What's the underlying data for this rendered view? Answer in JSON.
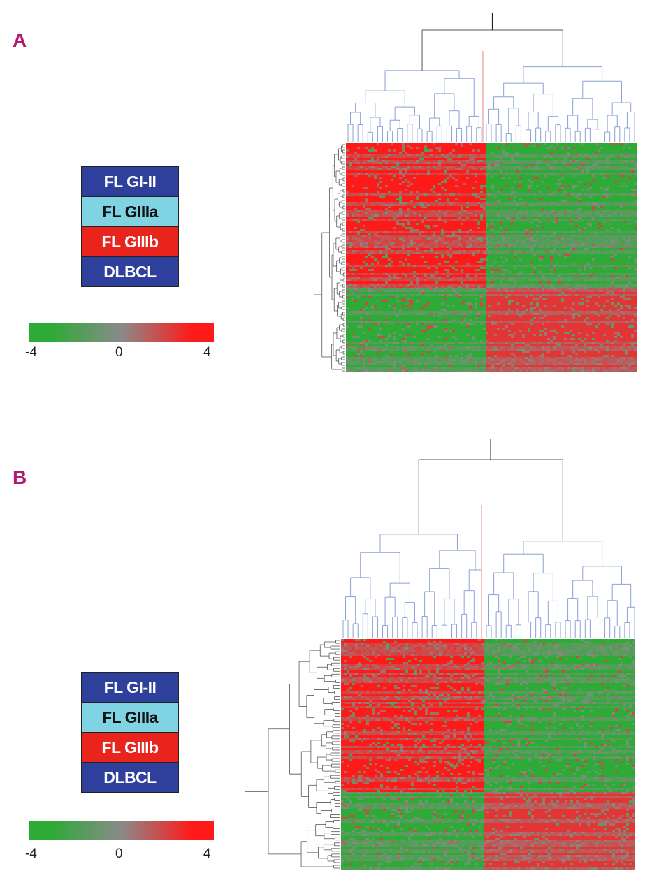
{
  "panels": [
    {
      "label": "A",
      "legend": [
        {
          "text": "FL GI-II",
          "bg": "#2e3f9c",
          "fg": "#ffffff"
        },
        {
          "text": "FL GIIIa",
          "bg": "#7fd3e3",
          "fg": "#111111"
        },
        {
          "text": "FL GIIIb",
          "bg": "#e8241c",
          "fg": "#ffffff"
        },
        {
          "text": "DLBCL",
          "bg": "#2e3f9c",
          "fg": "#ffffff"
        }
      ],
      "scale": {
        "min": "-4",
        "mid": "0",
        "max": "4"
      }
    },
    {
      "label": "B",
      "legend": [
        {
          "text": "FL GI-II",
          "bg": "#2e3f9c",
          "fg": "#ffffff"
        },
        {
          "text": "FL GIIIa",
          "bg": "#7fd3e3",
          "fg": "#111111"
        },
        {
          "text": "FL GIIIb",
          "bg": "#e8241c",
          "fg": "#ffffff"
        },
        {
          "text": "DLBCL",
          "bg": "#2e3f9c",
          "fg": "#ffffff"
        }
      ],
      "scale": {
        "min": "-4",
        "mid": "0",
        "max": "4"
      }
    }
  ],
  "chart_data": [
    {
      "type": "heatmap",
      "panel": "A",
      "color_scale": {
        "min": -4,
        "mid": 0,
        "max": 4,
        "colors": [
          "#2eaa36",
          "#8a8a8a",
          "#ff1a1a"
        ]
      },
      "column_clusters": [
        {
          "group": "left",
          "fraction": 0.475
        },
        {
          "group": "right",
          "fraction": 0.525
        }
      ],
      "row_clusters": [
        {
          "group": "top",
          "fraction": 0.63
        },
        {
          "group": "bottom",
          "fraction": 0.37
        }
      ],
      "blocks": [
        {
          "rows": "top",
          "cols": "left",
          "level": 4
        },
        {
          "rows": "top",
          "cols": "right",
          "level": -4
        },
        {
          "rows": "bottom",
          "cols": "left",
          "level": -4
        },
        {
          "rows": "bottom",
          "cols": "right",
          "level": 3
        }
      ],
      "column_dendrogram": true,
      "row_dendrogram": true,
      "dendrogram_colors": [
        "#8aa0d8",
        "#f08080",
        "#555555"
      ]
    },
    {
      "type": "heatmap",
      "panel": "B",
      "color_scale": {
        "min": -4,
        "mid": 0,
        "max": 4,
        "colors": [
          "#2eaa36",
          "#8a8a8a",
          "#ff1a1a"
        ]
      },
      "column_clusters": [
        {
          "group": "left",
          "fraction": 0.48
        },
        {
          "group": "right",
          "fraction": 0.52
        }
      ],
      "row_clusters": [
        {
          "group": "top",
          "fraction": 0.66
        },
        {
          "group": "bottom",
          "fraction": 0.34
        }
      ],
      "blocks": [
        {
          "rows": "top",
          "cols": "left",
          "level": 4
        },
        {
          "rows": "top",
          "cols": "right",
          "level": -4
        },
        {
          "rows": "bottom",
          "cols": "left",
          "level": -4
        },
        {
          "rows": "bottom",
          "cols": "right",
          "level": 3
        }
      ],
      "column_dendrogram": true,
      "row_dendrogram": true,
      "dendrogram_colors": [
        "#8aa0d8",
        "#f08080",
        "#555555"
      ]
    }
  ]
}
